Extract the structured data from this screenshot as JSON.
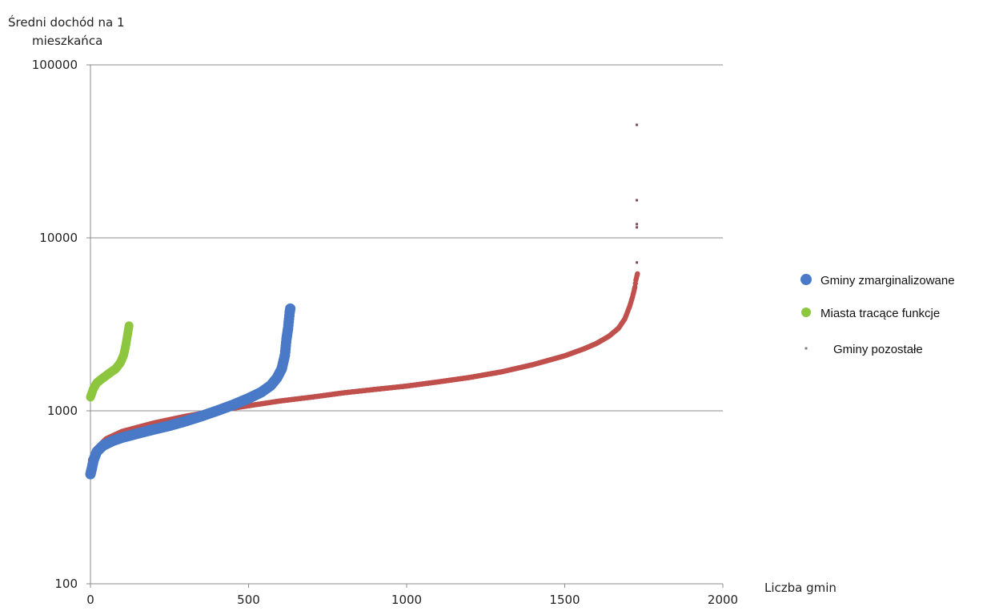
{
  "chart_data": {
    "type": "scatter",
    "ylabel_lines": [
      "Średni dochód na 1",
      "mieszkańca"
    ],
    "xlabel": "Liczba gmin",
    "y_scale": "log",
    "xlim": [
      0,
      2000
    ],
    "ylim": [
      100,
      100000
    ],
    "x_ticks": [
      "0",
      "500",
      "1000",
      "1500",
      "2000"
    ],
    "y_ticks": [
      "100",
      "1000",
      "10000",
      "100000"
    ],
    "grid": "horizontal",
    "legend_position": "right",
    "series": [
      {
        "name": "Gminy zmarginalizowane",
        "color": "#4a7ac7",
        "x": [
          0,
          5,
          10,
          20,
          40,
          70,
          100,
          150,
          200,
          250,
          300,
          350,
          400,
          450,
          500,
          540,
          570,
          590,
          605,
          615,
          620,
          625,
          628,
          630,
          632
        ],
        "y": [
          430,
          470,
          520,
          580,
          630,
          670,
          700,
          740,
          780,
          820,
          870,
          930,
          1000,
          1080,
          1180,
          1280,
          1400,
          1550,
          1750,
          2100,
          2600,
          3000,
          3400,
          3700,
          3900
        ]
      },
      {
        "name": "Miasta tracące funkcje",
        "color": "#8dc63f",
        "x": [
          0,
          10,
          20,
          40,
          60,
          80,
          95,
          105,
          112,
          118,
          122
        ],
        "y": [
          1200,
          1350,
          1450,
          1550,
          1650,
          1750,
          1900,
          2100,
          2400,
          2800,
          3100
        ]
      },
      {
        "name": "Gminy pozostałe",
        "color": "#c0504d",
        "x": [
          0,
          20,
          50,
          100,
          200,
          300,
          400,
          500,
          600,
          700,
          800,
          900,
          1000,
          1100,
          1200,
          1300,
          1400,
          1500,
          1560,
          1600,
          1640,
          1670,
          1690,
          1705,
          1715,
          1722,
          1725,
          1728,
          1730
        ],
        "y": [
          520,
          610,
          690,
          760,
          850,
          930,
          1000,
          1070,
          1140,
          1200,
          1270,
          1330,
          1390,
          1470,
          1560,
          1680,
          1850,
          2080,
          2280,
          2450,
          2700,
          3000,
          3400,
          4000,
          4600,
          5200,
          5700,
          6000,
          6200
        ]
      }
    ],
    "outliers": {
      "x": [
        1728,
        1728,
        1728,
        1728,
        1728
      ],
      "y": [
        45000,
        16500,
        12000,
        11500,
        7200
      ]
    }
  }
}
